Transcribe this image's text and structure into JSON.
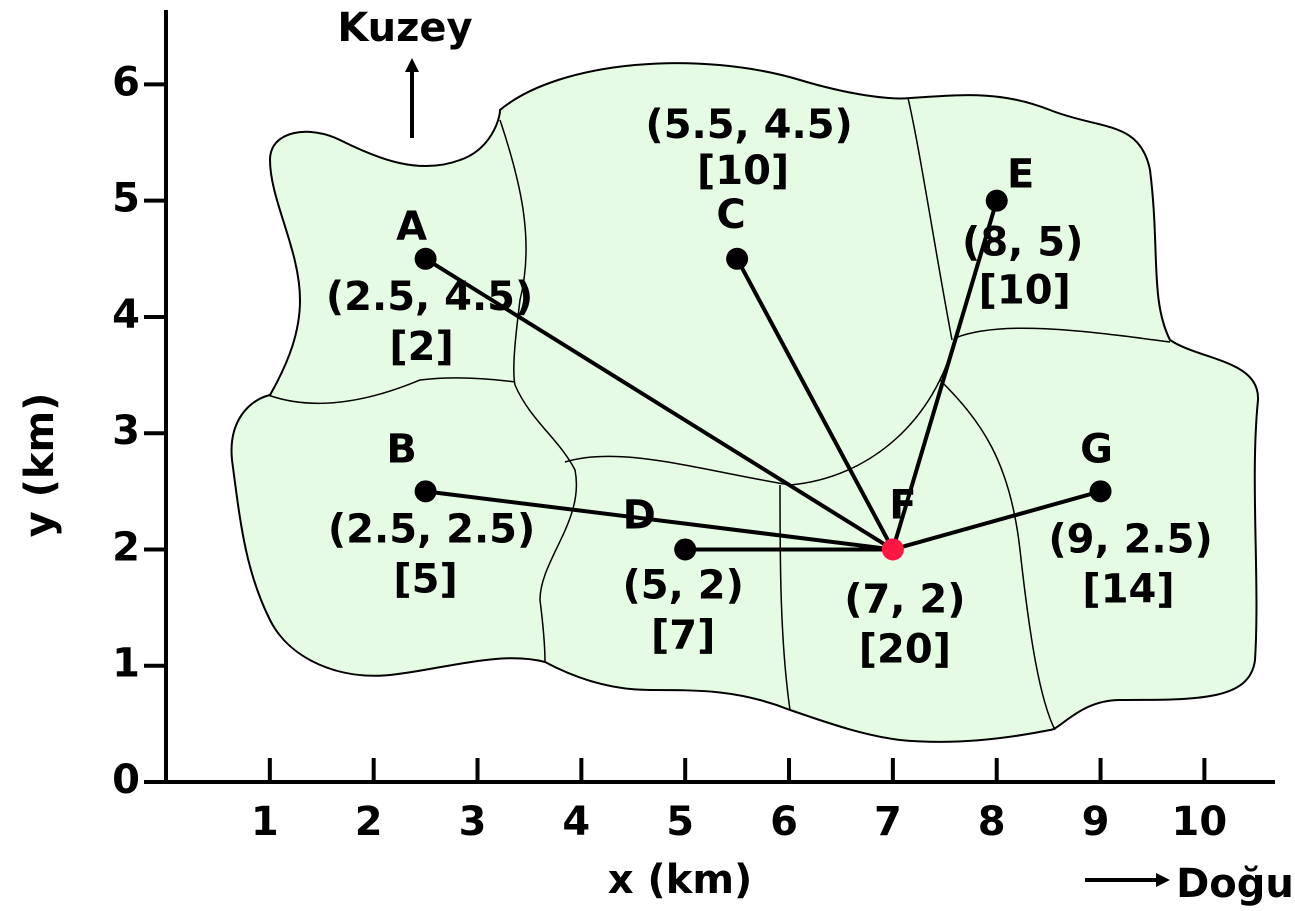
{
  "chart_data": {
    "type": "scatter",
    "annotations": {
      "north": "Kuzey",
      "east": "Doğu"
    },
    "x_label": "x (km)",
    "y_label": "y (km)",
    "points": [
      "A",
      "B",
      "C",
      "D",
      "E",
      "F",
      "G"
    ],
    "x": [
      2.5,
      2.5,
      5.5,
      5,
      8,
      7,
      9
    ],
    "values": [
      4.5,
      2.5,
      4.5,
      2,
      5,
      2,
      2.5
    ],
    "value_labels": [
      "(2.5, 4.5)",
      "(2.5, 2.5)",
      "(5.5, 4.5)",
      "(5, 2)",
      "(8, 5)",
      "(7, 2)",
      "(9, 2.5)"
    ],
    "weights": [
      2,
      5,
      10,
      7,
      10,
      20,
      14
    ],
    "weight_labels": [
      "[2]",
      "[5]",
      "[10]",
      "[7]",
      "[10]",
      "[20]",
      "[14]"
    ],
    "colors": [
      "#000000",
      "#000000",
      "#000000",
      "#000000",
      "#000000",
      "#ff1744",
      "#000000"
    ],
    "edges": [
      [
        0,
        5
      ],
      [
        1,
        5
      ],
      [
        2,
        5
      ],
      [
        3,
        5
      ],
      [
        4,
        5
      ],
      [
        6,
        5
      ]
    ],
    "region_color": "#e6fbe3",
    "xlim": [
      0,
      10.68
    ],
    "ylim": [
      0,
      6.64
    ],
    "xticks": [
      1,
      2,
      3,
      4,
      5,
      6,
      7,
      8,
      9,
      10
    ],
    "yticks": [
      0,
      1,
      2,
      3,
      4,
      5,
      6
    ]
  }
}
